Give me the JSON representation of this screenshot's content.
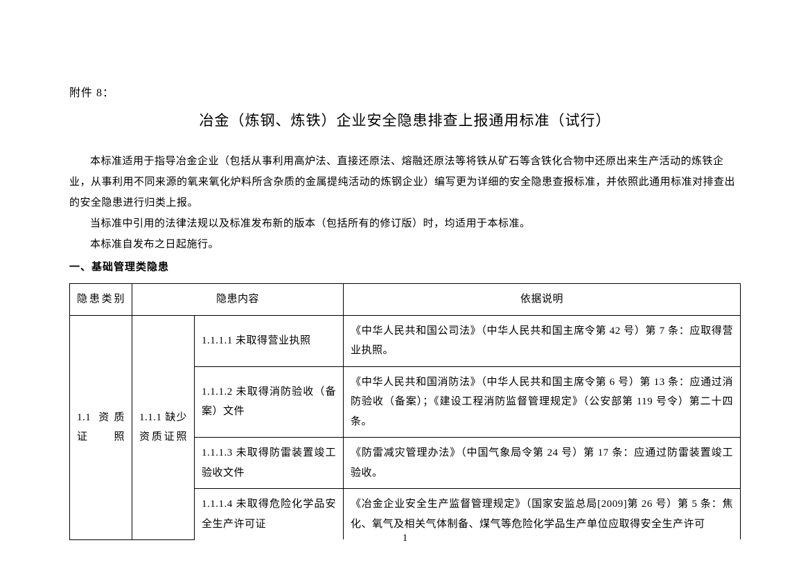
{
  "attachment_label": "附件 8：",
  "doc_title": "冶金（炼钢、炼铁）企业安全隐患排查上报通用标准（试行）",
  "intro": {
    "p1": "本标准适用于指导冶金企业（包括从事利用高炉法、直接还原法、熔融还原法等将铁从矿石等含铁化合物中还原出来生产活动的炼铁企业，从事利用不同来源的氧来氧化炉料所含杂质的金属提纯活动的炼钢企业）编写更为详细的安全隐患查报标准，并依照此通用标准对排查出的安全隐患进行归类上报。",
    "p2": "当标准中引用的法律法规以及标准发布新的版本（包括所有的修订版）时，均适用于本标准。",
    "p3": "本标准自发布之日起施行。"
  },
  "section1_heading": "一、基础管理类隐患",
  "table": {
    "headers": {
      "category": "隐患类别",
      "content": "隐患内容",
      "basis": "依据说明"
    },
    "rows": {
      "cat_1_1": "1.1 资质证照",
      "sub_1_1_1": "1.1.1 缺少资质证照",
      "r1_content": "1.1.1.1 未取得营业执照",
      "r1_basis": "《中华人民共和国公司法》（中华人民共和国主席令第 42 号）第 7 条：应取得营业执照。",
      "r2_content": "1.1.1.2 未取得消防验收（备案）文件",
      "r2_basis": "《中华人民共和国消防法》（中华人民共和国主席令第 6 号）第 13 条：应通过消防验收（备案）；《建设工程消防监督管理规定》（公安部第 119 号令）第二十四条。",
      "r3_content": "1.1.1.3 未取得防雷装置竣工验收文件",
      "r3_basis": "《防雷减灾管理办法》（中国气象局令第 24 号）第 17 条：应通过防雷装置竣工验收。",
      "r4_content": "1.1.1.4 未取得危险化学品安全生产许可证",
      "r4_basis": "《冶金企业安全生产监督管理规定》（国家安监总局[2009]第 26 号）第 5 条：焦化、氧气及相关气体制备、煤气等危险化学品生产单位应取得安全生产许可"
    }
  },
  "page_number": "1"
}
